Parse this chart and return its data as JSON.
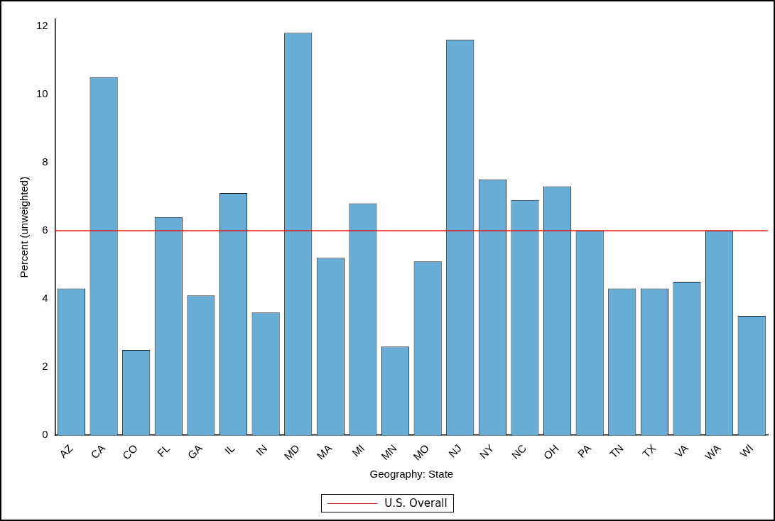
{
  "chart_data": {
    "type": "bar",
    "xlabel": "Geography: State",
    "ylabel": "Percent (unweighted)",
    "categories": [
      "AZ",
      "CA",
      "CO",
      "FL",
      "GA",
      "IL",
      "IN",
      "MD",
      "MA",
      "MI",
      "MN",
      "MO",
      "NJ",
      "NY",
      "NC",
      "OH",
      "PA",
      "TN",
      "TX",
      "VA",
      "WA",
      "WI"
    ],
    "values": [
      4.3,
      10.5,
      2.5,
      6.4,
      4.1,
      7.1,
      3.6,
      11.8,
      5.2,
      6.8,
      2.6,
      5.1,
      11.6,
      7.5,
      6.9,
      7.3,
      6.0,
      4.3,
      4.3,
      4.5,
      6.0,
      3.5
    ],
    "color": "#67add6",
    "ylim": [
      0,
      12.2
    ],
    "yticks": [
      0,
      2,
      4,
      6,
      8,
      10,
      12
    ],
    "ref_lines": [
      {
        "axis": "y",
        "value": 6,
        "label": "U.S. Overall",
        "color": "#e8161b"
      }
    ],
    "legend": "bottom",
    "grid": false
  }
}
